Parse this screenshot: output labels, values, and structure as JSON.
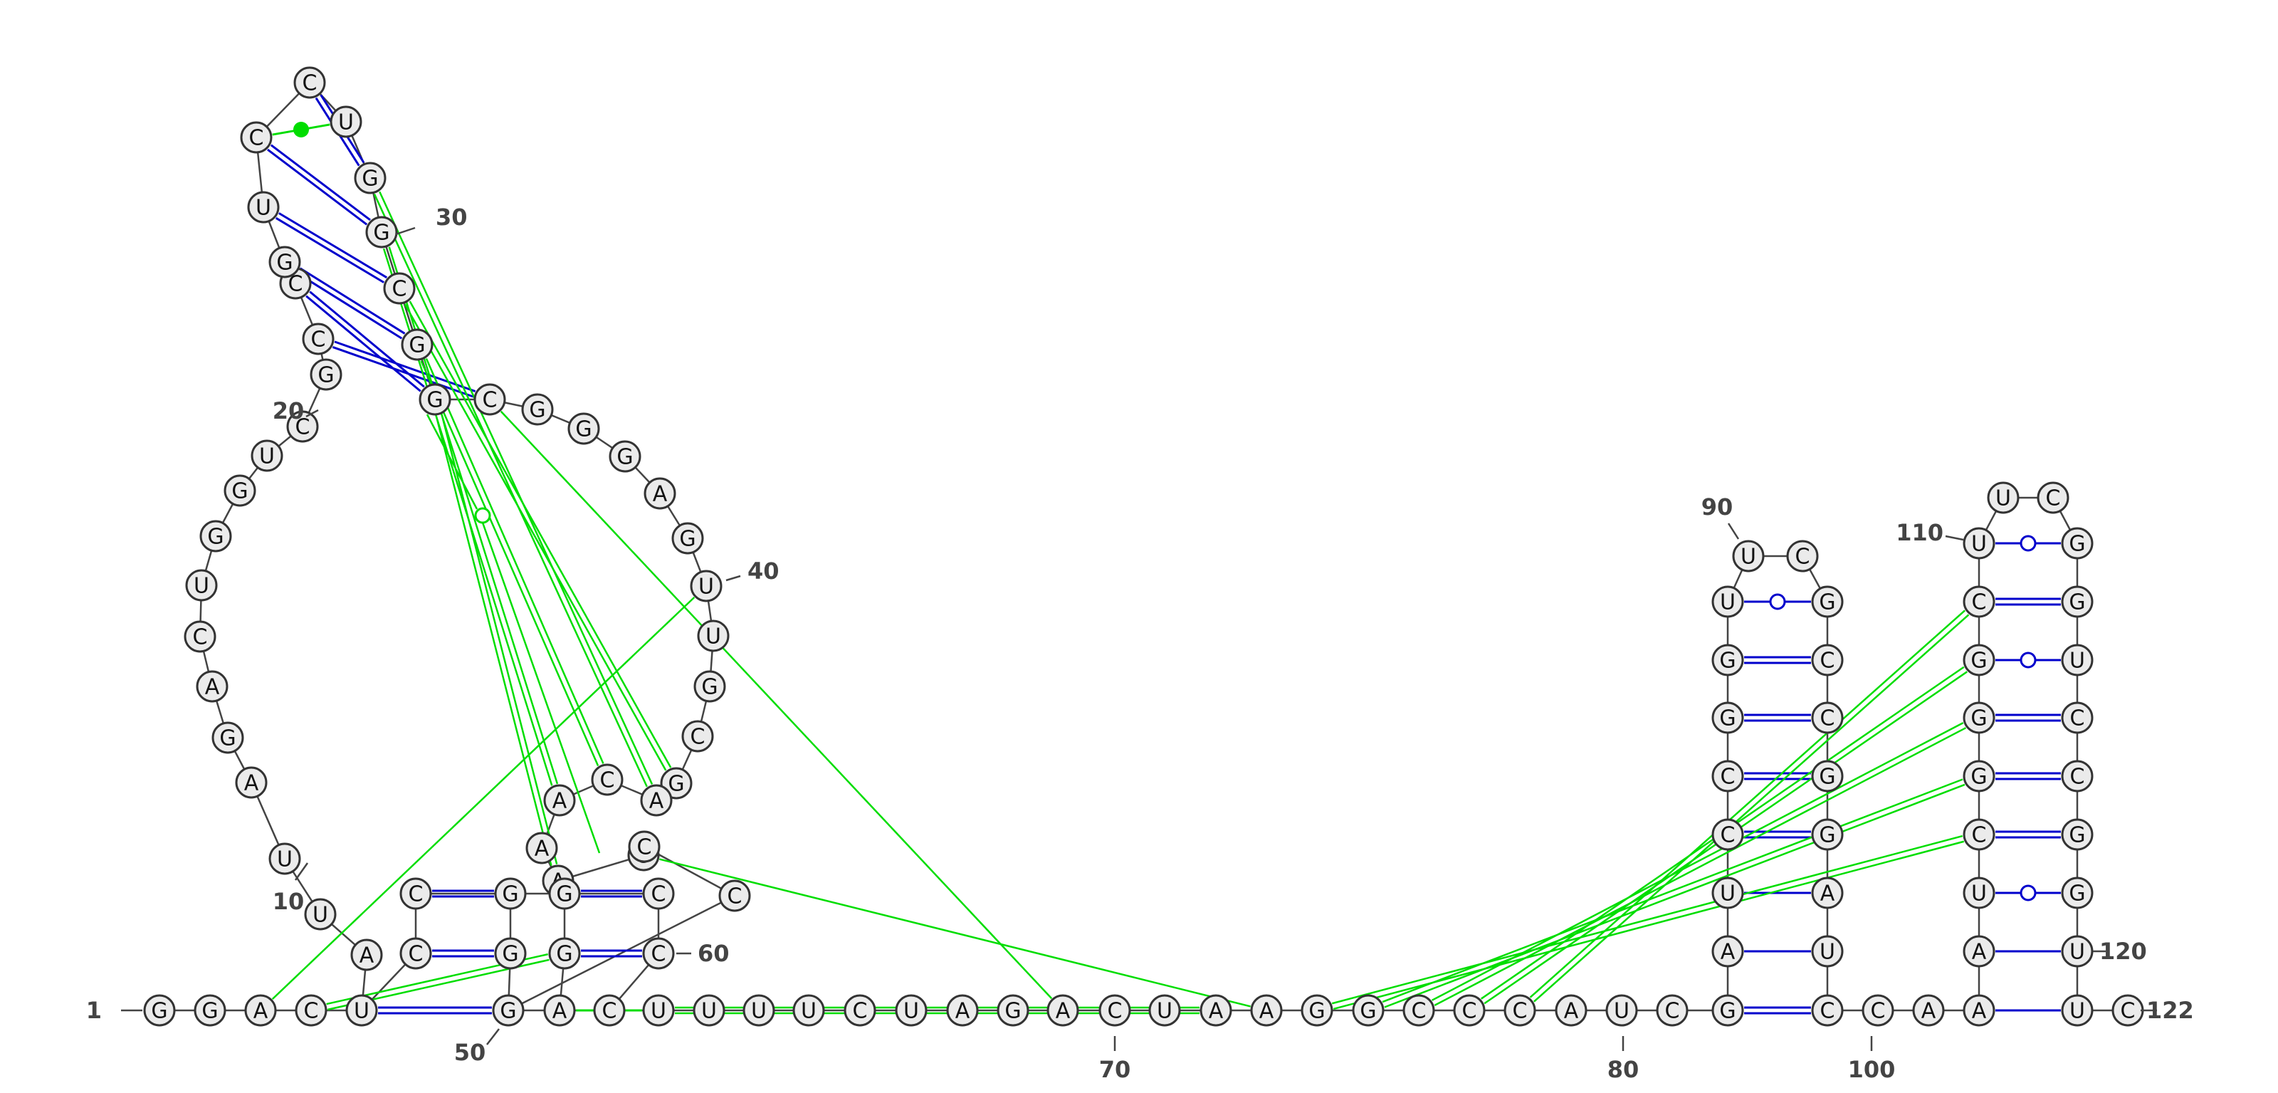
{
  "diagram": {
    "type": "rna-secondary-structure",
    "length": 122,
    "colors": {
      "backbone": "#444444",
      "canonical_pair": "#0000cc",
      "wobble_pair": "#0000cc",
      "tertiary_interaction": "#00dd00",
      "nucleotide_fill": "#ebebeb",
      "nucleotide_stroke": "#333333"
    },
    "position_labels": [
      "1",
      "10",
      "20",
      "30",
      "40",
      "50",
      "60",
      "70",
      "80",
      "90",
      "100",
      "110",
      "120",
      "122"
    ]
  }
}
